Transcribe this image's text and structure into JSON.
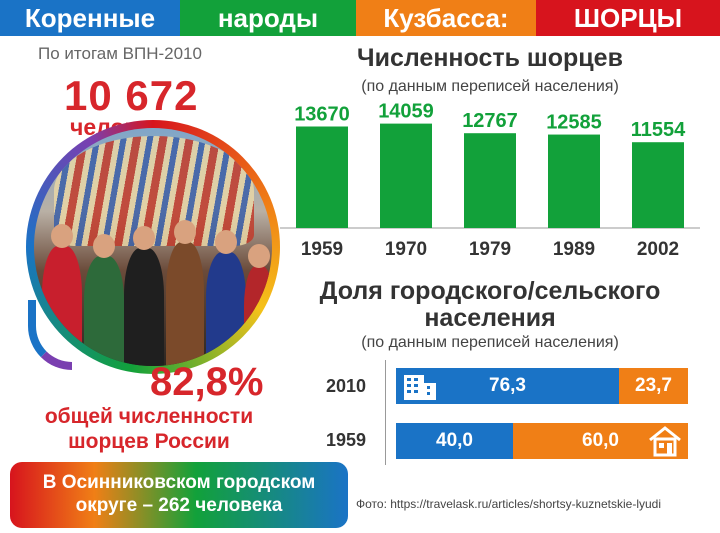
{
  "header": {
    "words": [
      "Коренные",
      "народы",
      "Кузбасса:",
      "ШОРЦЫ"
    ],
    "colors": [
      "#1a73c6",
      "#12a13a",
      "#f07f16",
      "#d7141d"
    ]
  },
  "left": {
    "census_label": "По итогам ВПН-2010",
    "population": "10 672",
    "population_unit": "человека",
    "share_percent": "82,8%",
    "share_caption_line1": "общей численности",
    "share_caption_line2": "шорцев России",
    "osinniki_line1": "В Осинниковском городском",
    "osinniki_line2": "округе – 262 человека"
  },
  "population_chart": {
    "title": "Численность шорцев",
    "subtitle": "(по данным переписей населения)"
  },
  "share_chart": {
    "title_line1": "Доля городского/сельского",
    "title_line2": "населения",
    "subtitle": "(по данным переписей населения)",
    "rows": [
      {
        "year": "2010",
        "urban_label": "76,3",
        "rural_label": "23,7"
      },
      {
        "year": "1959",
        "urban_label": "40,0",
        "rural_label": "60,0"
      }
    ]
  },
  "credit": "Фото: https://travelask.ru/articles/shortsy-kuznetskie-lyudi",
  "icons": {
    "urban": "building-icon",
    "rural": "house-icon",
    "photo": "shor-people-photo"
  },
  "chart_data": [
    {
      "type": "bar",
      "categories": [
        "1959",
        "1970",
        "1979",
        "1989",
        "2002"
      ],
      "values": [
        13670,
        14059,
        12767,
        12585,
        11554
      ],
      "title": "Численность шорцев",
      "subtitle": "(по данным переписей населения)",
      "xlabel": "",
      "ylabel": "",
      "ylim": [
        0,
        16000
      ],
      "grid": false,
      "colors": {
        "bar": "#12a13a",
        "label": "#12a13a"
      }
    },
    {
      "type": "bar",
      "orientation": "horizontal-stacked",
      "categories": [
        "2010",
        "1959"
      ],
      "series": [
        {
          "name": "",
          "values": [
            76.3,
            40.0
          ],
          "color": "#1a73c6"
        },
        {
          "name": "",
          "values": [
            23.7,
            60.0
          ],
          "color": "#f07f16"
        }
      ],
      "title": "Доля городского/сельского населения",
      "subtitle": "(по данным переписей населения)",
      "xlim": [
        0,
        100
      ],
      "grid": false
    }
  ]
}
